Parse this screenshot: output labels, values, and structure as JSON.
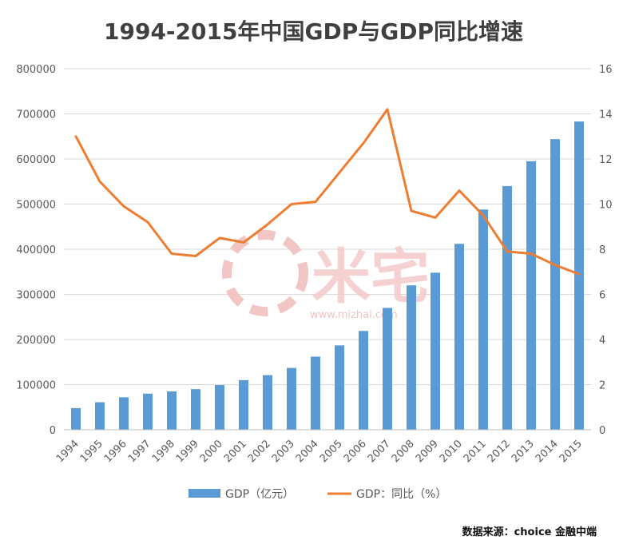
{
  "watermark": {
    "brand": "米宅",
    "url": "www.mizhai.com"
  },
  "source_note": "数据来源：choice 金融中端",
  "colors": {
    "bar": "#5b9bd5",
    "line": "#ed7d31",
    "grid": "#d9d9d9",
    "tick": "#595959"
  },
  "chart_data": {
    "type": "bar",
    "title": "1994-2015年中国GDP与GDP同比增速",
    "categories": [
      "1994",
      "1995",
      "1996",
      "1997",
      "1998",
      "1999",
      "2000",
      "2001",
      "2002",
      "2003",
      "2004",
      "2005",
      "2006",
      "2007",
      "2008",
      "2009",
      "2010",
      "2011",
      "2012",
      "2013",
      "2014",
      "2015"
    ],
    "series": [
      {
        "name": "GDP（亿元）",
        "type": "bar",
        "axis": "left",
        "values": [
          48000,
          61000,
          72000,
          80000,
          85000,
          90000,
          99000,
          110000,
          121000,
          137000,
          162000,
          187000,
          219000,
          270000,
          320000,
          348000,
          412000,
          488000,
          540000,
          595000,
          644000,
          683000
        ]
      },
      {
        "name": "GDP：同比（%）",
        "type": "line",
        "axis": "right",
        "values": [
          13.0,
          11.0,
          9.9,
          9.2,
          7.8,
          7.7,
          8.5,
          8.3,
          9.1,
          10.0,
          10.1,
          11.4,
          12.7,
          14.2,
          9.7,
          9.4,
          10.6,
          9.5,
          7.9,
          7.8,
          7.3,
          6.9
        ]
      }
    ],
    "y_left": {
      "min": 0,
      "max": 800000,
      "ticks": [
        "0",
        "100000",
        "200000",
        "300000",
        "400000",
        "500000",
        "600000",
        "700000",
        "800000"
      ]
    },
    "y_right": {
      "min": 0,
      "max": 16,
      "ticks": [
        "0",
        "2",
        "4",
        "6",
        "8",
        "10",
        "12",
        "14",
        "16"
      ]
    },
    "grid": true,
    "legend": "bottom"
  }
}
